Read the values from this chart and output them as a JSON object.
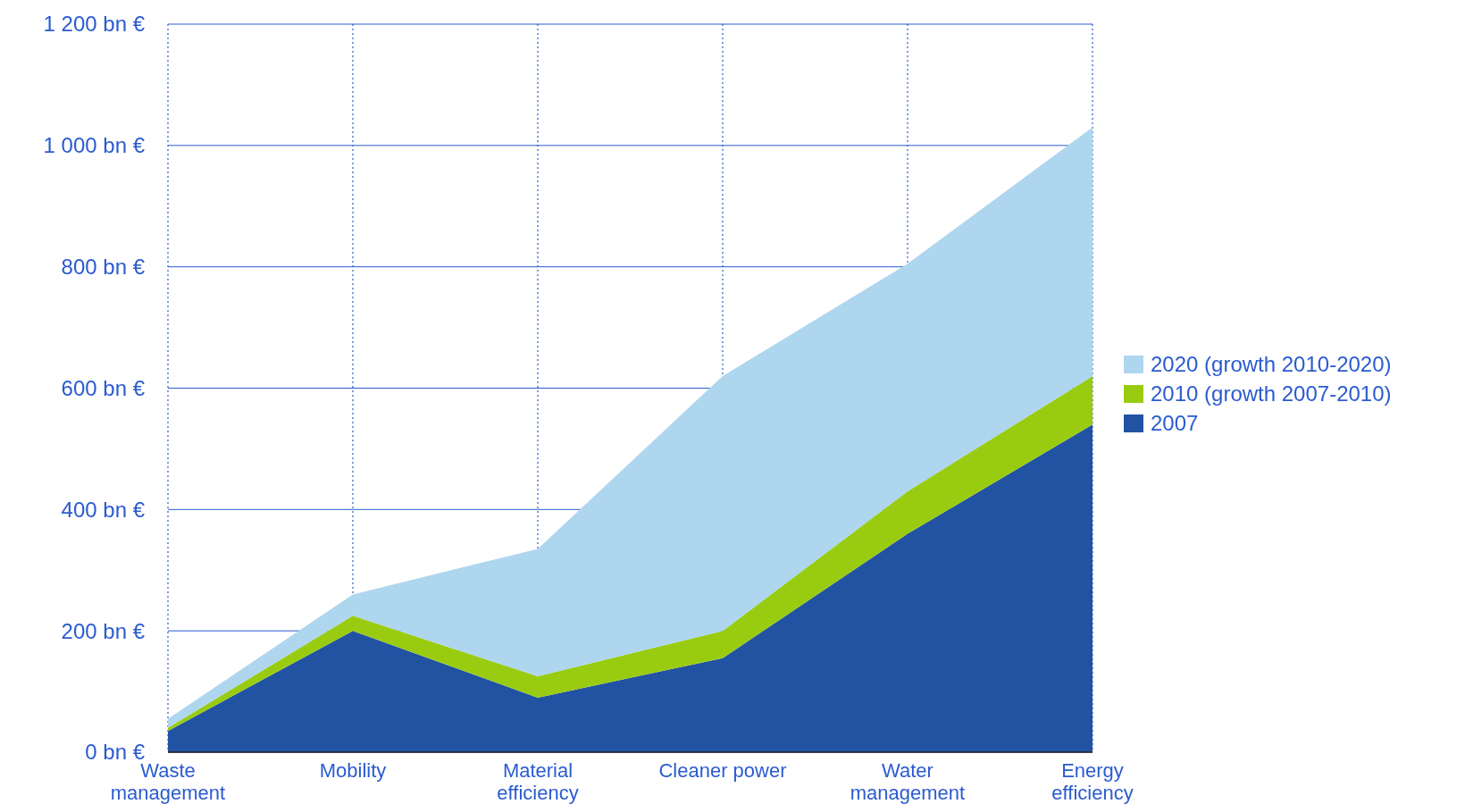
{
  "chart_data": {
    "type": "area",
    "stacked": true,
    "categories": [
      "Waste management",
      "Mobility",
      "Material efficiency",
      "Cleaner power",
      "Water management",
      "Energy efficiency"
    ],
    "series": [
      {
        "name": "2007",
        "color": "#2253a3",
        "values": [
          35,
          200,
          90,
          155,
          360,
          540
        ]
      },
      {
        "name": "2010 (growth 2007-2010)",
        "color": "#99cc11",
        "values": [
          5,
          25,
          35,
          45,
          70,
          80
        ]
      },
      {
        "name": "2020 (growth 2010-2020)",
        "color": "#aed6ef",
        "values": [
          15,
          35,
          210,
          420,
          375,
          410
        ]
      }
    ],
    "ylim": [
      0,
      1200
    ],
    "yticks": [
      {
        "value": 0,
        "label": "0 bn €"
      },
      {
        "value": 200,
        "label": "200 bn €"
      },
      {
        "value": 400,
        "label": "400 bn €"
      },
      {
        "value": 600,
        "label": "600 bn €"
      },
      {
        "value": 800,
        "label": "800 bn €"
      },
      {
        "value": 1000,
        "label": "1 000 bn €"
      },
      {
        "value": 1200,
        "label": "1 200 bn €"
      }
    ],
    "grid": true,
    "legend": "right"
  }
}
